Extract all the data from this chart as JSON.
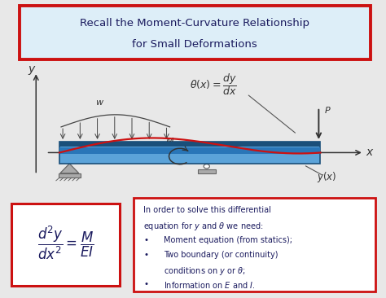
{
  "title_line1": "Recall the Moment-Curvature Relationship",
  "title_line2": "for Small Deformations",
  "title_bg": "#ddeef8",
  "title_border": "#cc1111",
  "bg_color": "#e8e8e8",
  "eq_box_color": "#cc1111",
  "eq_box_bg": "#ffffff",
  "beam_color_dark": "#1a4f7a",
  "beam_color_mid": "#2976b8",
  "beam_color_light": "#5ba3d9",
  "deflection_color": "#cc1111",
  "text_color": "#1a1a5e",
  "gray_support": "#aaaaaa",
  "beam_ylim": [
    -1.8,
    3.8
  ],
  "beam_xlim": [
    0,
    10.5
  ]
}
